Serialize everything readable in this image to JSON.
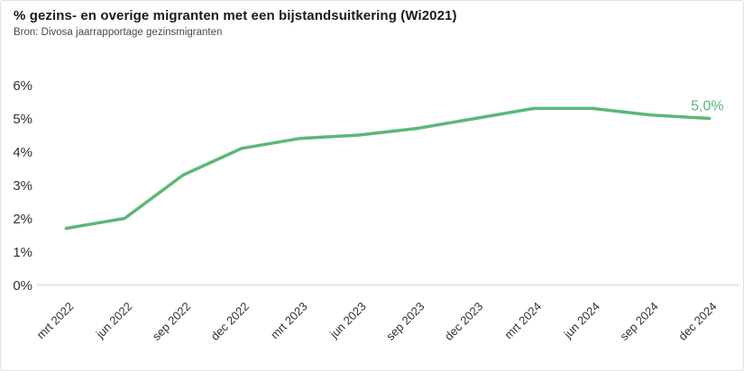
{
  "chart_data": {
    "type": "line",
    "title": "% gezins- en overige migranten met een bijstandsuitkering (Wi2021)",
    "source": "Bron: Divosa jaarrapportage gezinsmigranten",
    "categories": [
      "mrt 2022",
      "jun 2022",
      "sep 2022",
      "dec 2022",
      "mrt 2023",
      "jun 2023",
      "sep 2023",
      "dec 2023",
      "mrt 2024",
      "jun 2024",
      "sep 2024",
      "dec 2024"
    ],
    "series": [
      {
        "name": "% gezins- en overige migranten met een bijstandsuitkering (Wi2021)",
        "values": [
          1.7,
          2.0,
          3.3,
          4.1,
          4.4,
          4.5,
          4.7,
          5.0,
          5.3,
          5.3,
          5.1,
          5.0
        ]
      }
    ],
    "end_label": "5,0%",
    "yticks": [
      0,
      1,
      2,
      3,
      4,
      5,
      6
    ],
    "ytick_labels": [
      "0%",
      "1%",
      "2%",
      "3%",
      "4%",
      "5%",
      "6%"
    ],
    "ylim": [
      0,
      6
    ],
    "xlabel": "",
    "ylabel": "",
    "grid": false,
    "legend": "none",
    "colors": {
      "line": "#5ab877",
      "end_label": "#5ab877",
      "axis_line": "#cfcfcf",
      "tick_label": "#303030",
      "title": "#1a1a1a",
      "subtitle": "#4a4a4a"
    }
  }
}
